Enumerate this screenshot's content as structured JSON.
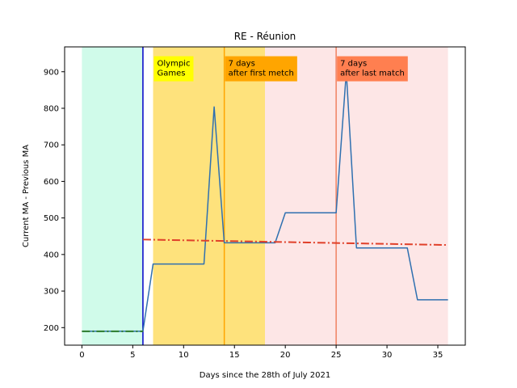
{
  "chart_data": {
    "type": "line",
    "title": "RE - Réunion",
    "xlabel": "Days since the 28th of July 2021",
    "ylabel": "Current MA - Previous MA",
    "xlim": [
      -1.7,
      37.7
    ],
    "ylim": [
      152,
      968
    ],
    "xticks": [
      0,
      5,
      10,
      15,
      20,
      25,
      30,
      35
    ],
    "yticks": [
      200,
      300,
      400,
      500,
      600,
      700,
      800,
      900
    ],
    "spans": [
      {
        "x0": 0,
        "x1": 6,
        "color": "#d0fbea"
      },
      {
        "x0": 7,
        "x1": 18,
        "color": "#fee27c"
      },
      {
        "x0": 18,
        "x1": 36,
        "color": "#fde6e6"
      }
    ],
    "vlines": [
      {
        "x": 6,
        "color": "#0000c8"
      },
      {
        "x": 14,
        "color": "#ffa500"
      },
      {
        "x": 25,
        "color": "#f08060"
      }
    ],
    "series": [
      {
        "color": "#2f70b0",
        "x": [
          0,
          1,
          2,
          3,
          4,
          5,
          6,
          7,
          8,
          9,
          10,
          11,
          12,
          13,
          14,
          15,
          16,
          17,
          18,
          19,
          20,
          21,
          22,
          23,
          24,
          25,
          26,
          27,
          28,
          29,
          30,
          31,
          32,
          33,
          34,
          35,
          36
        ],
        "y": [
          190,
          190,
          190,
          190,
          190,
          190,
          190,
          374,
          374,
          374,
          374,
          374,
          374,
          804,
          432,
          432,
          432,
          432,
          432,
          432,
          514,
          514,
          514,
          514,
          514,
          514,
          900,
          418,
          418,
          418,
          418,
          418,
          418,
          276,
          276,
          276,
          276
        ]
      }
    ],
    "trend_lines": [
      {
        "x": [
          0,
          6
        ],
        "y": [
          190,
          190
        ],
        "color": "#2a7a2a",
        "style": "dashdot"
      },
      {
        "x": [
          6,
          36
        ],
        "y": [
          441,
          426
        ],
        "color": "#e0402a",
        "style": "dashdot"
      }
    ],
    "annotations": [
      {
        "lines": [
          "Olympic",
          "Games"
        ],
        "x": 7,
        "y": 938,
        "color": "#ffff00"
      },
      {
        "lines": [
          "7 days",
          "after first metch"
        ],
        "x": 14,
        "y": 938,
        "color": "#ffa500"
      },
      {
        "lines": [
          "7 days",
          "after last match"
        ],
        "x": 25,
        "y": 938,
        "color": "#ff7f50"
      }
    ],
    "grid": false,
    "legend": "none"
  }
}
